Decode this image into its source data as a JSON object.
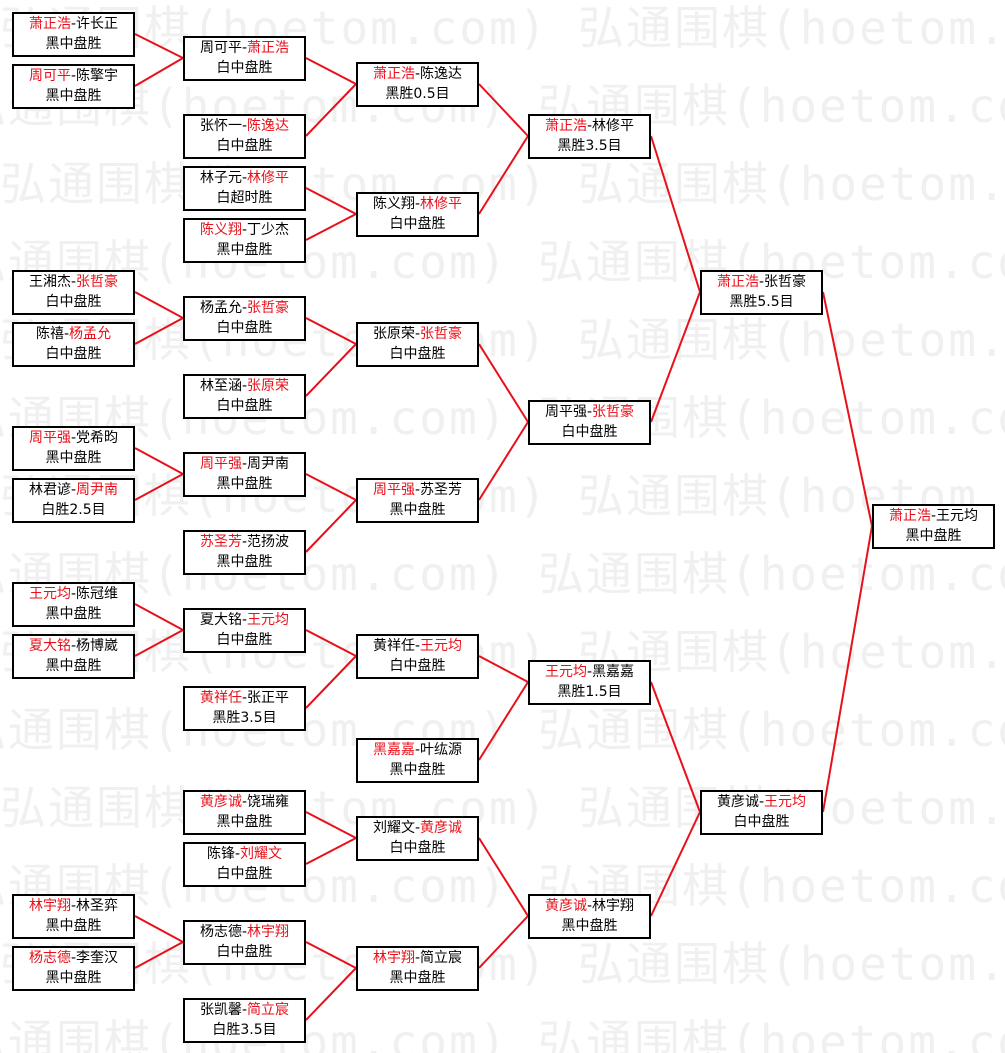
{
  "watermark": "弘通围棋(hoetom.com) 弘通围棋(hoetom.com)",
  "colors": {
    "winner": "#e8101a",
    "line": "#e8101a",
    "border": "#000000"
  },
  "matches": [
    {
      "p1": "萧正浩",
      "p2": "许长正",
      "winner": 1,
      "result": "黑中盘胜"
    },
    {
      "p1": "周可平",
      "p2": "陈擎宇",
      "winner": 1,
      "result": "黑中盘胜"
    },
    {
      "p1": "王湘杰",
      "p2": "张哲豪",
      "winner": 2,
      "result": "白中盘胜"
    },
    {
      "p1": "陈禧",
      "p2": "杨孟允",
      "winner": 2,
      "result": "白中盘胜"
    },
    {
      "p1": "周平强",
      "p2": "党希昀",
      "winner": 1,
      "result": "黑中盘胜"
    },
    {
      "p1": "林君谚",
      "p2": "周尹南",
      "winner": 2,
      "result": "白胜2.5目"
    },
    {
      "p1": "王元均",
      "p2": "陈冠维",
      "winner": 1,
      "result": "黑中盘胜"
    },
    {
      "p1": "夏大铭",
      "p2": "杨博崴",
      "winner": 1,
      "result": "黑中盘胜"
    },
    {
      "p1": "林宇翔",
      "p2": "林圣弈",
      "winner": 1,
      "result": "黑中盘胜"
    },
    {
      "p1": "杨志德",
      "p2": "李奎汉",
      "winner": 1,
      "result": "黑中盘胜"
    },
    {
      "p1": "周可平",
      "p2": "萧正浩",
      "winner": 2,
      "result": "白中盘胜"
    },
    {
      "p1": "张怀一",
      "p2": "陈逸达",
      "winner": 2,
      "result": "白中盘胜"
    },
    {
      "p1": "林子元",
      "p2": "林修平",
      "winner": 2,
      "result": "白超时胜"
    },
    {
      "p1": "陈义翔",
      "p2": "丁少杰",
      "winner": 1,
      "result": "黑中盘胜"
    },
    {
      "p1": "杨孟允",
      "p2": "张哲豪",
      "winner": 2,
      "result": "白中盘胜"
    },
    {
      "p1": "林至涵",
      "p2": "张原荣",
      "winner": 2,
      "result": "白中盘胜"
    },
    {
      "p1": "周平强",
      "p2": "周尹南",
      "winner": 1,
      "result": "黑中盘胜"
    },
    {
      "p1": "苏圣芳",
      "p2": "范扬波",
      "winner": 1,
      "result": "黑中盘胜"
    },
    {
      "p1": "夏大铭",
      "p2": "王元均",
      "winner": 2,
      "result": "白中盘胜"
    },
    {
      "p1": "黄祥任",
      "p2": "张正平",
      "winner": 1,
      "result": "黑胜3.5目"
    },
    {
      "p1": "黄彦诚",
      "p2": "饶瑞雍",
      "winner": 1,
      "result": "黑中盘胜"
    },
    {
      "p1": "陈锋",
      "p2": "刘耀文",
      "winner": 2,
      "result": "白中盘胜"
    },
    {
      "p1": "杨志德",
      "p2": "林宇翔",
      "winner": 2,
      "result": "白中盘胜"
    },
    {
      "p1": "张凯馨",
      "p2": "简立宸",
      "winner": 2,
      "result": "白胜3.5目"
    },
    {
      "p1": "萧正浩",
      "p2": "陈逸达",
      "winner": 1,
      "result": "黑胜0.5目"
    },
    {
      "p1": "陈义翔",
      "p2": "林修平",
      "winner": 2,
      "result": "白中盘胜"
    },
    {
      "p1": "张原荣",
      "p2": "张哲豪",
      "winner": 2,
      "result": "白中盘胜"
    },
    {
      "p1": "周平强",
      "p2": "苏圣芳",
      "winner": 1,
      "result": "黑中盘胜"
    },
    {
      "p1": "黄祥任",
      "p2": "王元均",
      "winner": 2,
      "result": "白中盘胜"
    },
    {
      "p1": "黑嘉嘉",
      "p2": "叶纮源",
      "winner": 1,
      "result": "黑中盘胜"
    },
    {
      "p1": "刘耀文",
      "p2": "黄彦诚",
      "winner": 2,
      "result": "白中盘胜"
    },
    {
      "p1": "林宇翔",
      "p2": "简立宸",
      "winner": 1,
      "result": "黑中盘胜"
    },
    {
      "p1": "萧正浩",
      "p2": "林修平",
      "winner": 1,
      "result": "黑胜3.5目"
    },
    {
      "p1": "周平强",
      "p2": "张哲豪",
      "winner": 2,
      "result": "白中盘胜"
    },
    {
      "p1": "王元均",
      "p2": "黑嘉嘉",
      "winner": 1,
      "result": "黑胜1.5目"
    },
    {
      "p1": "黄彦诚",
      "p2": "林宇翔",
      "winner": 1,
      "result": "黑中盘胜"
    },
    {
      "p1": "萧正浩",
      "p2": "张哲豪",
      "winner": 1,
      "result": "黑胜5.5目"
    },
    {
      "p1": "黄彦诚",
      "p2": "王元均",
      "winner": 2,
      "result": "白中盘胜"
    },
    {
      "p1": "萧正浩",
      "p2": "王元均",
      "winner": 1,
      "result": "黑中盘胜"
    }
  ]
}
